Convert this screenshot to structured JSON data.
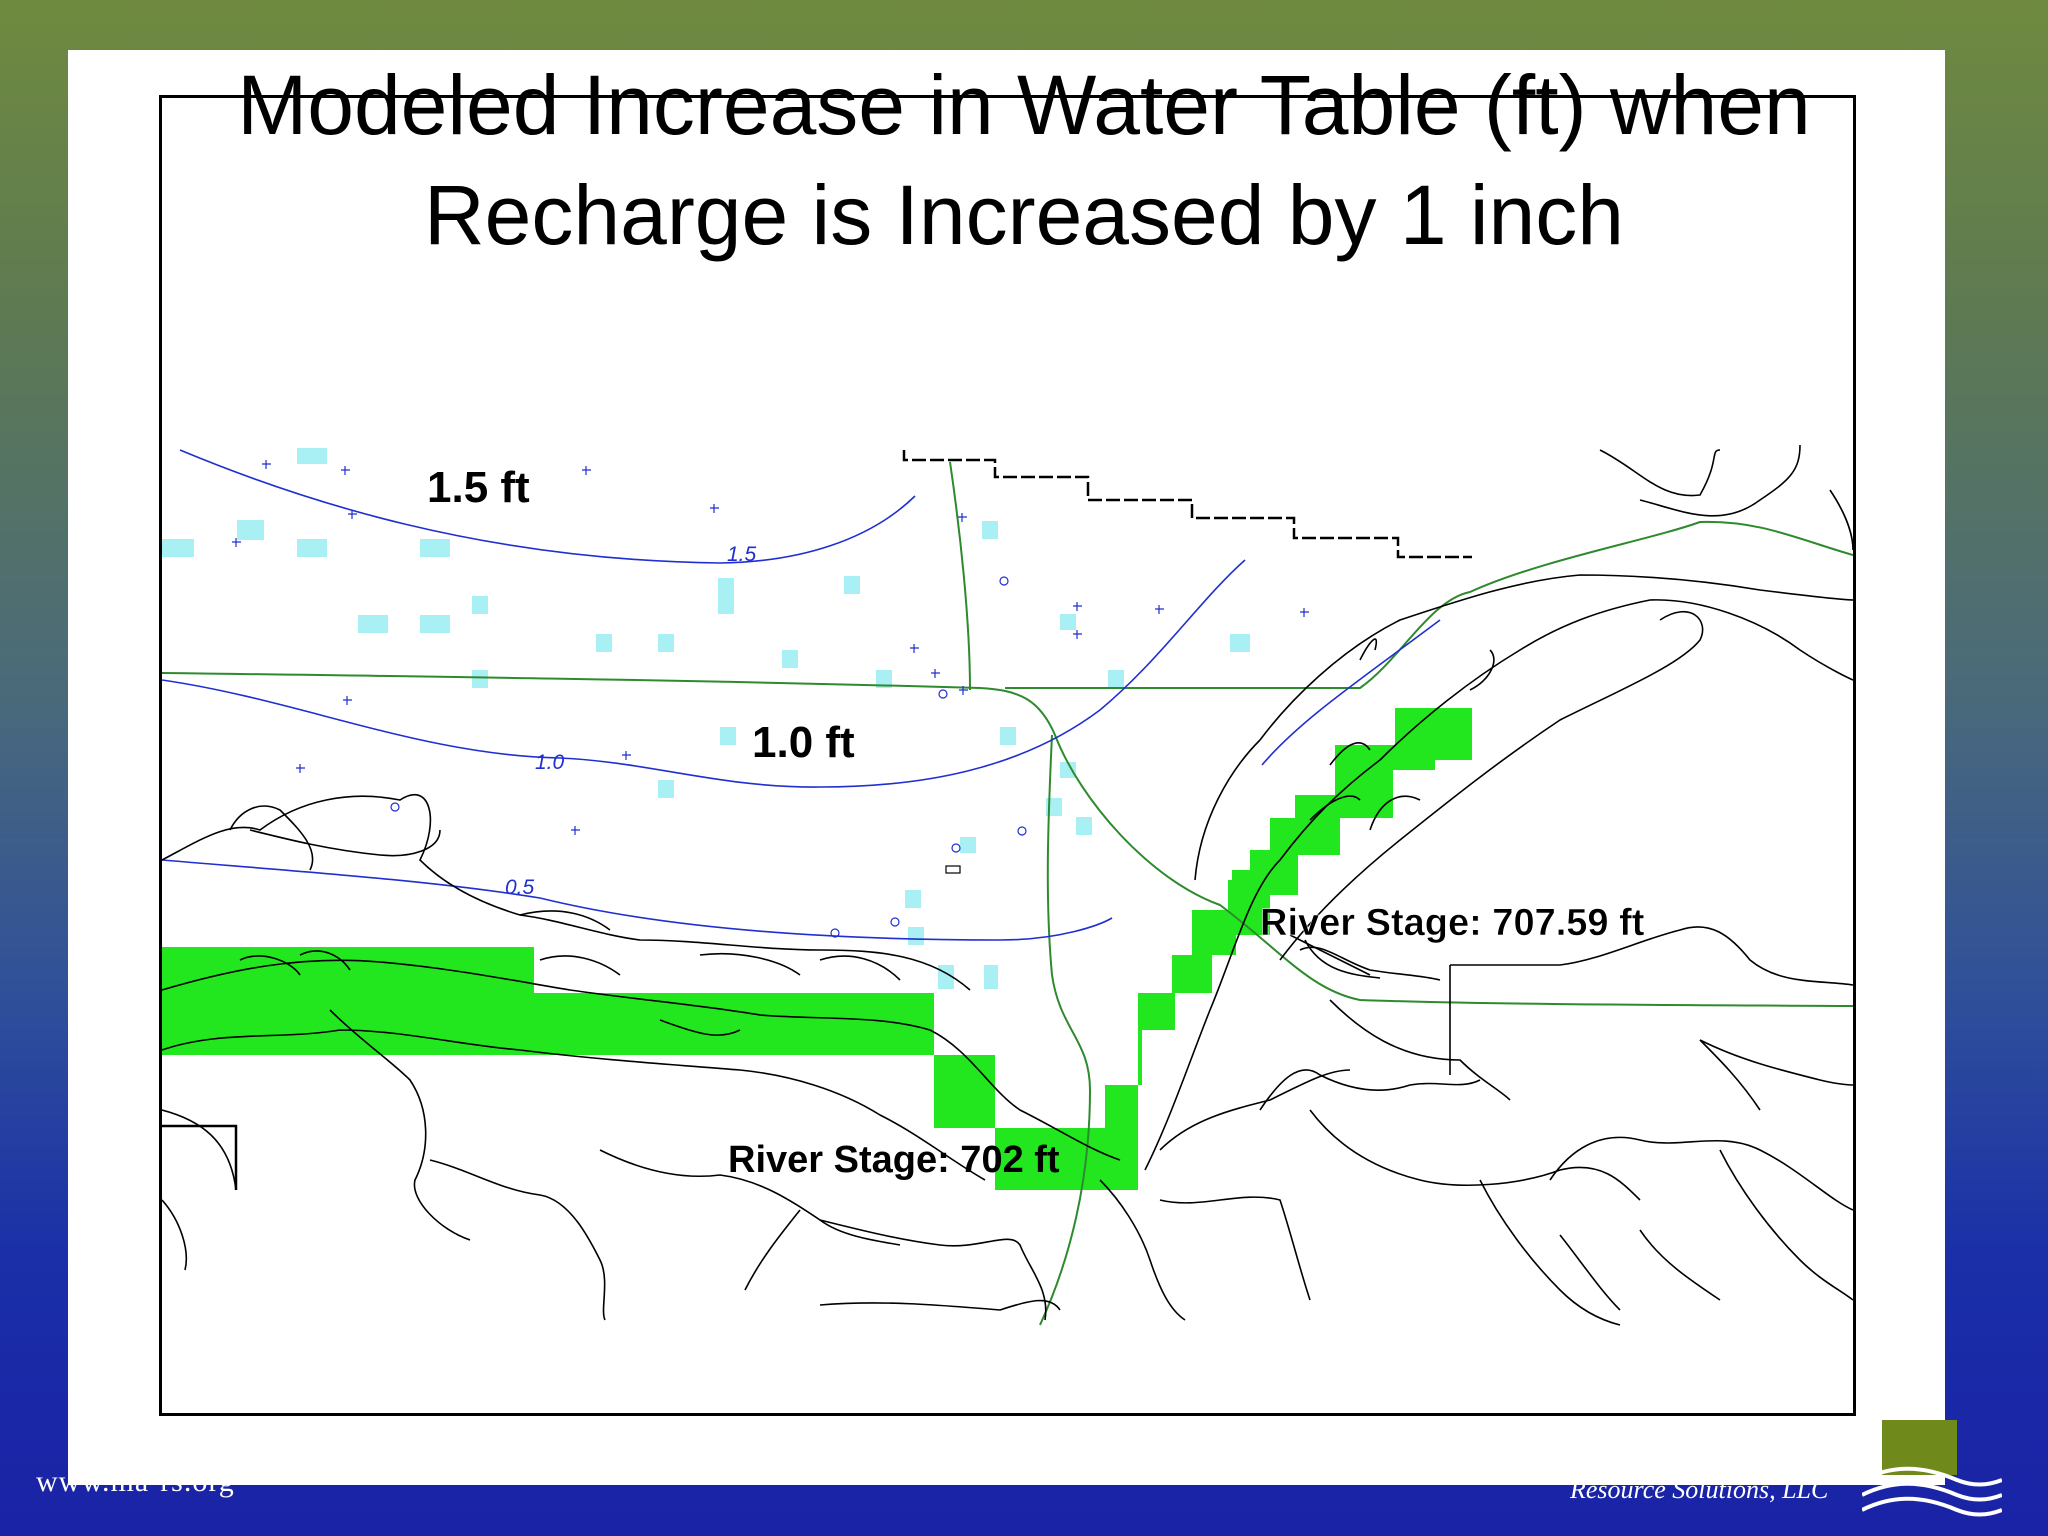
{
  "title": {
    "line1": "Modeled Increase in Water Table (ft) when",
    "line2": "Recharge is Increased by 1 inch"
  },
  "map": {
    "labels": {
      "contour_1_5": "1.5 ft",
      "contour_1_0": "1.0 ft",
      "river_stage_right": "River Stage:  707.59 ft",
      "river_stage_bottom": "River Stage: 702 ft"
    },
    "contour_values": [
      "1.5",
      "1.0",
      "0.5"
    ],
    "colors": {
      "contour": "#1f2fd0",
      "river_cells": "#22e61e",
      "wells": "#a8f0f4",
      "roads": "#2e8a2e",
      "streams": "#000000"
    }
  },
  "footer": {
    "url": "www.ma-rs.org",
    "company": "Resource Solutions, LLC"
  }
}
